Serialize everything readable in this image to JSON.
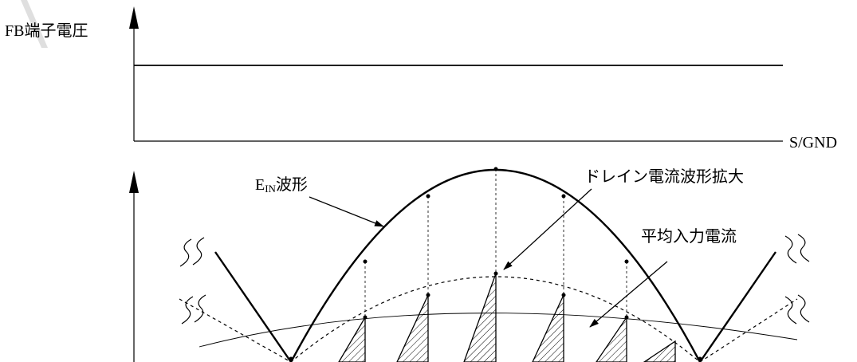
{
  "labels": {
    "fb_voltage": "FB端子電圧",
    "ground": "S/GND",
    "ein_main": "E",
    "ein_sub": "IN",
    "ein_suffix": "波形",
    "drain_current": "ドレイン電流波形拡大",
    "avg_current": "平均入力電流"
  },
  "colors": {
    "line": "#000000",
    "watermark": "#d2d2d2"
  }
}
